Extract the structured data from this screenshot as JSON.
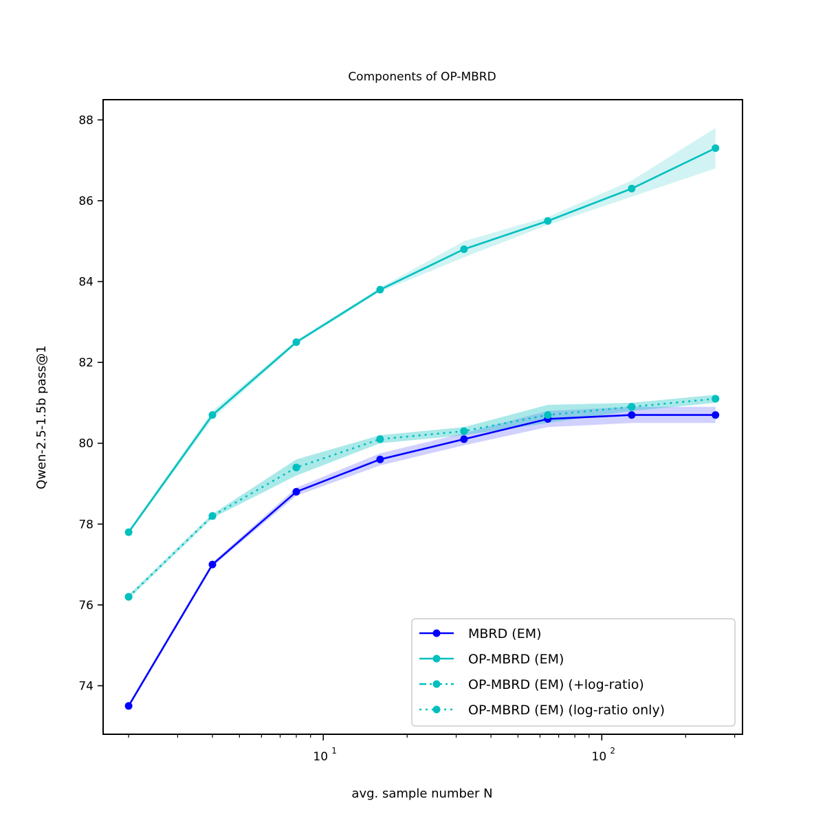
{
  "chart_data": {
    "type": "line",
    "title": "Components of OP-MBRD",
    "xlabel": "avg. sample number N",
    "ylabel": "Qwen-2.5-1.5b pass@1",
    "xscale": "log",
    "xlim": [
      1.62,
      320
    ],
    "ylim": [
      72.8,
      88.5
    ],
    "x": [
      2,
      4,
      8,
      16,
      32,
      64,
      128,
      256
    ],
    "y_ticks": [
      74,
      76,
      78,
      80,
      82,
      84,
      86,
      88
    ],
    "y_tick_labels": [
      "74",
      "76",
      "78",
      "80",
      "82",
      "84",
      "86",
      "88"
    ],
    "x_major_ticks": [
      10,
      100
    ],
    "x_major_tick_labels": [
      {
        "base": "10",
        "exp": "1"
      },
      {
        "base": "10",
        "exp": "2"
      }
    ],
    "x_minor_ticks": [
      2,
      3,
      4,
      5,
      6,
      7,
      8,
      9,
      20,
      30,
      40,
      50,
      60,
      70,
      80,
      90,
      200,
      300
    ],
    "legend_position": "lower-right",
    "series": [
      {
        "name": "MBRD (EM)",
        "color": "#0000ff",
        "linestyle": "solid",
        "values": [
          73.5,
          77.0,
          78.8,
          79.6,
          80.1,
          80.6,
          80.7,
          80.7
        ],
        "band_lo": [
          73.45,
          76.95,
          78.7,
          79.45,
          79.95,
          80.4,
          80.5,
          80.5
        ],
        "band_hi": [
          73.55,
          77.05,
          78.9,
          79.75,
          80.25,
          80.8,
          80.9,
          80.9
        ]
      },
      {
        "name": "OP-MBRD (EM)",
        "color": "#00bfbf",
        "linestyle": "solid",
        "values": [
          77.8,
          80.7,
          82.5,
          83.8,
          84.8,
          85.5,
          86.3,
          87.3
        ],
        "band_lo": [
          77.75,
          80.6,
          82.45,
          83.75,
          84.6,
          85.4,
          86.1,
          86.8
        ],
        "band_hi": [
          77.85,
          80.8,
          82.55,
          83.85,
          85.0,
          85.6,
          86.5,
          87.8
        ]
      },
      {
        "name": "OP-MBRD (EM) (+log-ratio)",
        "color": "#00bfbf",
        "linestyle": "dashdot",
        "values": [
          76.2,
          78.2,
          79.4,
          80.1,
          80.3,
          80.7,
          80.9,
          81.1
        ],
        "band_lo": [
          76.15,
          78.15,
          79.2,
          80.0,
          80.2,
          80.5,
          80.8,
          81.0
        ],
        "band_hi": [
          76.25,
          78.25,
          79.6,
          80.2,
          80.4,
          80.95,
          81.0,
          81.2
        ]
      },
      {
        "name": "OP-MBRD (EM) (log-ratio only)",
        "color": "#00bfbf",
        "linestyle": "dotted",
        "values": [
          76.2,
          78.2,
          79.4,
          80.1,
          80.3,
          80.7,
          80.9,
          81.1
        ],
        "band_lo": [
          76.15,
          78.15,
          79.2,
          80.0,
          80.2,
          80.5,
          80.8,
          81.0
        ],
        "band_hi": [
          76.25,
          78.25,
          79.6,
          80.2,
          80.4,
          80.95,
          81.0,
          81.2
        ]
      }
    ]
  }
}
